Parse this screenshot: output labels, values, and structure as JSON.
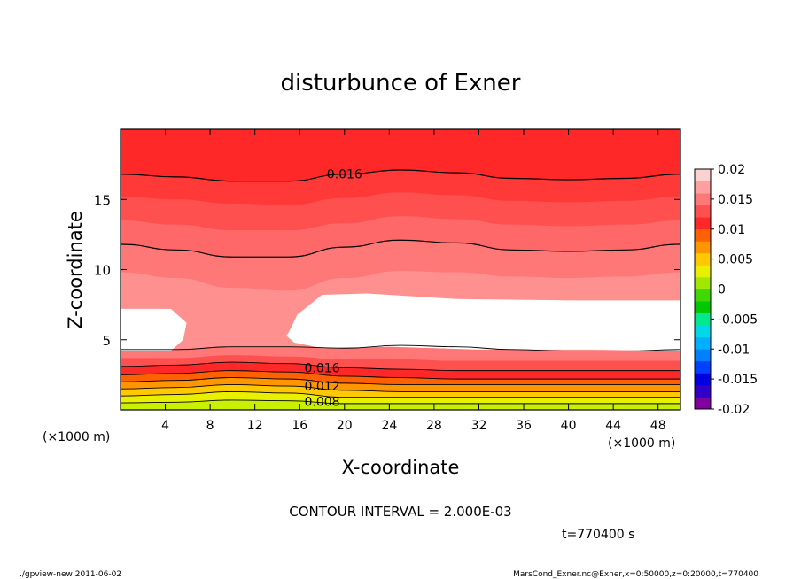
{
  "chart_data": {
    "type": "contour",
    "title": "disturbunce of Exner",
    "xlabel": "X-coordinate",
    "ylabel": "Z-coordinate",
    "x_unit": "(×1000 m)",
    "y_unit": "(×1000 m)",
    "xlim": [
      0,
      50
    ],
    "ylim": [
      0,
      20
    ],
    "x_ticks": [
      4,
      8,
      12,
      16,
      20,
      24,
      28,
      32,
      36,
      40,
      44,
      48
    ],
    "y_ticks": [
      5,
      10,
      15
    ],
    "contour_interval_text": "CONTOUR INTERVAL = 2.000E-03",
    "time_text": "t=770400 s",
    "contour_labels": [
      {
        "text": "0.016",
        "x": 20,
        "z": 16.8
      },
      {
        "text": "0.016",
        "x": 18,
        "z": 3.0
      },
      {
        "text": "0.012",
        "x": 18,
        "z": 1.7
      },
      {
        "text": "0.008",
        "x": 18,
        "z": 0.6
      }
    ],
    "colorbar": {
      "tick_labels": [
        "0.02",
        "0.015",
        "0.01",
        "0.005",
        "0",
        "-0.005",
        "-0.01",
        "-0.015",
        "-0.02"
      ],
      "colors": [
        "#8000a0",
        "#3000c8",
        "#0000e0",
        "#0040ff",
        "#0080ff",
        "#00b0ff",
        "#00d8e8",
        "#00e890",
        "#00c800",
        "#40d800",
        "#a0e800",
        "#e8f000",
        "#ffc800",
        "#ff9600",
        "#ff6000",
        "#ff2828",
        "#ff5050",
        "#ff7878",
        "#ffa0a0",
        "#ffd0d0"
      ]
    },
    "field_bands": [
      {
        "top": [
          20,
          20,
          20,
          20,
          20,
          20,
          20,
          20,
          20,
          20,
          20
        ],
        "color": "#ff2828"
      },
      {
        "top": [
          16.8,
          16.6,
          16.3,
          16.3,
          16.8,
          17.1,
          16.9,
          16.5,
          16.4,
          16.5,
          16.8
        ],
        "color": "#ff3838"
      },
      {
        "top": [
          15.2,
          15.0,
          14.7,
          14.6,
          15.1,
          15.5,
          15.3,
          14.9,
          14.8,
          14.9,
          15.2
        ],
        "color": "#ff5050"
      },
      {
        "top": [
          13.5,
          13.2,
          12.8,
          12.8,
          13.3,
          13.8,
          13.6,
          13.2,
          13.1,
          13.2,
          13.5
        ],
        "color": "#ff6868"
      },
      {
        "top": [
          11.8,
          11.4,
          10.9,
          10.9,
          11.6,
          12.1,
          11.9,
          11.4,
          11.3,
          11.4,
          11.8
        ],
        "color": "#ff7878"
      },
      {
        "top": [
          9.8,
          9.4,
          8.7,
          8.5,
          9.4,
          9.9,
          9.8,
          9.5,
          9.4,
          9.5,
          9.8
        ],
        "color": "#ff9090"
      },
      {
        "top": [
          4.3,
          4.3,
          4.5,
          4.5,
          4.4,
          4.6,
          4.5,
          4.3,
          4.2,
          4.2,
          4.3
        ],
        "color": "#ff7878"
      },
      {
        "top": [
          3.7,
          3.7,
          3.9,
          3.8,
          3.6,
          3.6,
          3.5,
          3.5,
          3.5,
          3.5,
          3.5
        ],
        "color": "#ff5050"
      },
      {
        "top": [
          3.1,
          3.2,
          3.4,
          3.3,
          3.0,
          2.9,
          2.8,
          2.8,
          2.8,
          2.8,
          2.8
        ],
        "color": "#ff2828"
      },
      {
        "top": [
          2.5,
          2.6,
          2.8,
          2.7,
          2.4,
          2.3,
          2.2,
          2.2,
          2.2,
          2.2,
          2.2
        ],
        "color": "#ff6000"
      },
      {
        "top": [
          2.0,
          2.1,
          2.3,
          2.2,
          1.9,
          1.8,
          1.8,
          1.8,
          1.8,
          1.8,
          1.8
        ],
        "color": "#ff9600"
      },
      {
        "top": [
          1.5,
          1.6,
          1.8,
          1.7,
          1.4,
          1.3,
          1.3,
          1.3,
          1.3,
          1.3,
          1.3
        ],
        "color": "#ffc800"
      },
      {
        "top": [
          1.0,
          1.1,
          1.3,
          1.2,
          0.9,
          0.9,
          0.9,
          0.9,
          0.9,
          0.9,
          0.9
        ],
        "color": "#e8f000"
      },
      {
        "top": [
          0.5,
          0.55,
          0.7,
          0.65,
          0.45,
          0.45,
          0.45,
          0.45,
          0.45,
          0.45,
          0.45
        ],
        "color": "#c8f000"
      }
    ],
    "contour_lines": [
      [
        16.8,
        16.6,
        16.3,
        16.3,
        16.8,
        17.1,
        16.9,
        16.5,
        16.4,
        16.5,
        16.8
      ],
      [
        11.8,
        11.4,
        10.9,
        10.9,
        11.6,
        12.1,
        11.9,
        11.4,
        11.3,
        11.4,
        11.8
      ],
      [
        4.3,
        4.3,
        4.5,
        4.5,
        4.4,
        4.6,
        4.5,
        4.3,
        4.2,
        4.2,
        4.3
      ],
      [
        3.1,
        3.2,
        3.4,
        3.3,
        3.0,
        2.9,
        2.8,
        2.8,
        2.8,
        2.8,
        2.8
      ],
      [
        2.5,
        2.6,
        2.8,
        2.7,
        2.4,
        2.3,
        2.2,
        2.2,
        2.2,
        2.2,
        2.2
      ],
      [
        2.0,
        2.1,
        2.3,
        2.2,
        1.9,
        1.8,
        1.8,
        1.8,
        1.8,
        1.8,
        1.8
      ],
      [
        1.5,
        1.6,
        1.8,
        1.7,
        1.4,
        1.3,
        1.3,
        1.3,
        1.3,
        1.3,
        1.3
      ],
      [
        1.0,
        1.1,
        1.3,
        1.2,
        0.9,
        0.9,
        0.9,
        0.9,
        0.9,
        0.9,
        0.9
      ],
      [
        0.5,
        0.55,
        0.7,
        0.65,
        0.45,
        0.45,
        0.45,
        0.45,
        0.45,
        0.45,
        0.45
      ]
    ],
    "blank_regions": [
      {
        "x": [
          0,
          0,
          4.5,
          5.9,
          5.6,
          4.5,
          0
        ],
        "z": [
          4.2,
          7.2,
          7.2,
          6.2,
          5.0,
          4.2,
          4.2
        ]
      },
      {
        "x": [
          15.0,
          15.8,
          18.0,
          22.0,
          30.0,
          40.0,
          50.0,
          50.0,
          42.0,
          32.0,
          24.0,
          18.0,
          15.5,
          14.8
        ],
        "z": [
          5.5,
          6.8,
          8.2,
          8.3,
          7.9,
          7.8,
          7.8,
          4.2,
          4.3,
          4.3,
          4.5,
          4.4,
          4.8,
          5.3
        ]
      }
    ]
  },
  "footer": {
    "left": "./gpview-new   2011-06-02",
    "right": "MarsCond_Exner.nc@Exner,x=0:50000,z=0:20000,t=770400"
  }
}
